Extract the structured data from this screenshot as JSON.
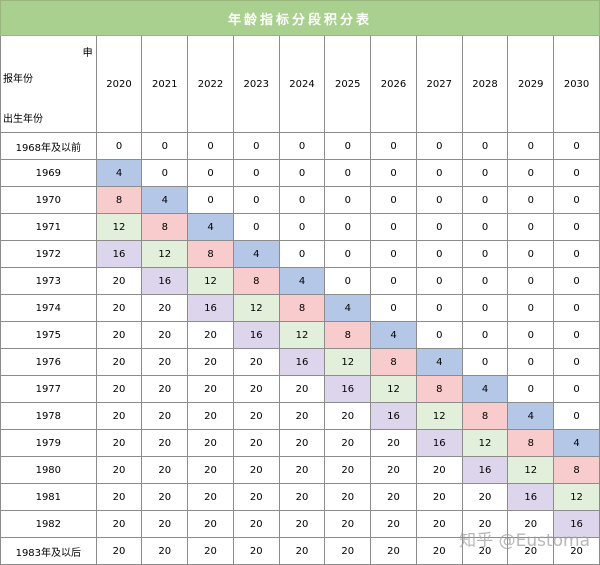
{
  "title": "年龄指标分段积分表",
  "corner": {
    "top": "申",
    "middle": "报年份",
    "bottom": "出生年份"
  },
  "years": [
    "2020",
    "2021",
    "2022",
    "2023",
    "2024",
    "2025",
    "2026",
    "2027",
    "2028",
    "2029",
    "2030"
  ],
  "birth_years": [
    "1968年及以前",
    "1969",
    "1970",
    "1971",
    "1972",
    "1973",
    "1974",
    "1975",
    "1976",
    "1977",
    "1978",
    "1979",
    "1980",
    "1981",
    "1982",
    "1983年及以后"
  ],
  "values": [
    [
      "0",
      "0",
      "0",
      "0",
      "0",
      "0",
      "0",
      "0",
      "0",
      "0",
      "0"
    ],
    [
      "4",
      "0",
      "0",
      "0",
      "0",
      "0",
      "0",
      "0",
      "0",
      "0",
      "0"
    ],
    [
      "8",
      "4",
      "0",
      "0",
      "0",
      "0",
      "0",
      "0",
      "0",
      "0",
      "0"
    ],
    [
      "12",
      "8",
      "4",
      "0",
      "0",
      "0",
      "0",
      "0",
      "0",
      "0",
      "0"
    ],
    [
      "16",
      "12",
      "8",
      "4",
      "0",
      "0",
      "0",
      "0",
      "0",
      "0",
      "0"
    ],
    [
      "20",
      "16",
      "12",
      "8",
      "4",
      "0",
      "0",
      "0",
      "0",
      "0",
      "0"
    ],
    [
      "20",
      "20",
      "16",
      "12",
      "8",
      "4",
      "0",
      "0",
      "0",
      "0",
      "0"
    ],
    [
      "20",
      "20",
      "20",
      "16",
      "12",
      "8",
      "4",
      "0",
      "0",
      "0",
      "0"
    ],
    [
      "20",
      "20",
      "20",
      "20",
      "16",
      "12",
      "8",
      "4",
      "0",
      "0",
      "0"
    ],
    [
      "20",
      "20",
      "20",
      "20",
      "20",
      "16",
      "12",
      "8",
      "4",
      "0",
      "0"
    ],
    [
      "20",
      "20",
      "20",
      "20",
      "20",
      "20",
      "16",
      "12",
      "8",
      "4",
      "0"
    ],
    [
      "20",
      "20",
      "20",
      "20",
      "20",
      "20",
      "20",
      "16",
      "12",
      "8",
      "4"
    ],
    [
      "20",
      "20",
      "20",
      "20",
      "20",
      "20",
      "20",
      "20",
      "16",
      "12",
      "8"
    ],
    [
      "20",
      "20",
      "20",
      "20",
      "20",
      "20",
      "20",
      "20",
      "20",
      "16",
      "12"
    ],
    [
      "20",
      "20",
      "20",
      "20",
      "20",
      "20",
      "20",
      "20",
      "20",
      "20",
      "16"
    ],
    [
      "20",
      "20",
      "20",
      "20",
      "20",
      "20",
      "20",
      "20",
      "20",
      "20",
      "20"
    ]
  ],
  "highlight_colors": {
    "4": "#b4c7e7",
    "8": "#f8cbcd",
    "12": "#e2efda",
    "16": "#dcd5ec"
  },
  "watermark": "知乎 @Eustoma"
}
